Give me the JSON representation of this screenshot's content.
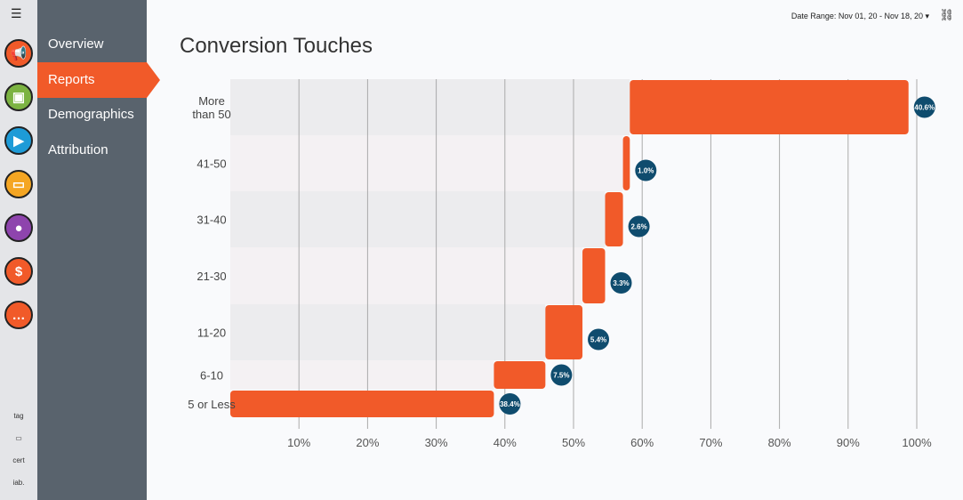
{
  "header": {
    "title": "Conversion Touches",
    "date_range": "Date Range: Nov 01, 20 - Nov 18, 20 ▾"
  },
  "sidebar": {
    "items": [
      {
        "label": "Overview"
      },
      {
        "label": "Reports",
        "active": true
      },
      {
        "label": "Demographics"
      },
      {
        "label": "Attribution"
      }
    ]
  },
  "apps": [
    {
      "icon": "megaphone-icon",
      "color": "#f15a29",
      "glyph": "📢"
    },
    {
      "icon": "person-frame-icon",
      "color": "#7cb342",
      "glyph": "▣"
    },
    {
      "icon": "play-icon",
      "color": "#1e9bd7",
      "glyph": "▶"
    },
    {
      "icon": "monitor-icon",
      "color": "#f5a623",
      "glyph": "▭"
    },
    {
      "icon": "head-icon",
      "color": "#8e44ad",
      "glyph": "●"
    },
    {
      "icon": "dollar-icon",
      "color": "#f15a29",
      "glyph": "$"
    },
    {
      "icon": "chat-icon",
      "color": "#f15a29",
      "glyph": "…"
    }
  ],
  "badges": [
    {
      "label": "tag"
    },
    {
      "label": "▭"
    },
    {
      "label": "cert"
    },
    {
      "label": "iab."
    }
  ],
  "chart_data": {
    "type": "bar",
    "subtype": "waterfall-horizontal",
    "title": "Conversion Touches",
    "categories": [
      "More than 50",
      "41-50",
      "31-40",
      "21-30",
      "11-20",
      "6-10",
      "5 or Less"
    ],
    "category_lines": [
      [
        "More",
        "than 50"
      ],
      [
        "41-50"
      ],
      [
        "31-40"
      ],
      [
        "21-30"
      ],
      [
        "11-20"
      ],
      [
        "6-10"
      ],
      [
        "5 or Less"
      ]
    ],
    "values": [
      40.6,
      1.0,
      2.6,
      3.3,
      5.4,
      7.5,
      38.4
    ],
    "data_labels": [
      "40.6%",
      "1.0%",
      "2.6%",
      "3.3%",
      "5.4%",
      "7.5%",
      "38.4%"
    ],
    "x_ticks": [
      "10%",
      "20%",
      "30%",
      "40%",
      "50%",
      "60%",
      "70%",
      "80%",
      "90%",
      "100%"
    ],
    "xlim": [
      0,
      100
    ],
    "grid": true,
    "colors": {
      "bar": "#f15a29",
      "label": "#0f4c6e",
      "band1": "#ececee",
      "band2": "#f4f1f3"
    }
  }
}
